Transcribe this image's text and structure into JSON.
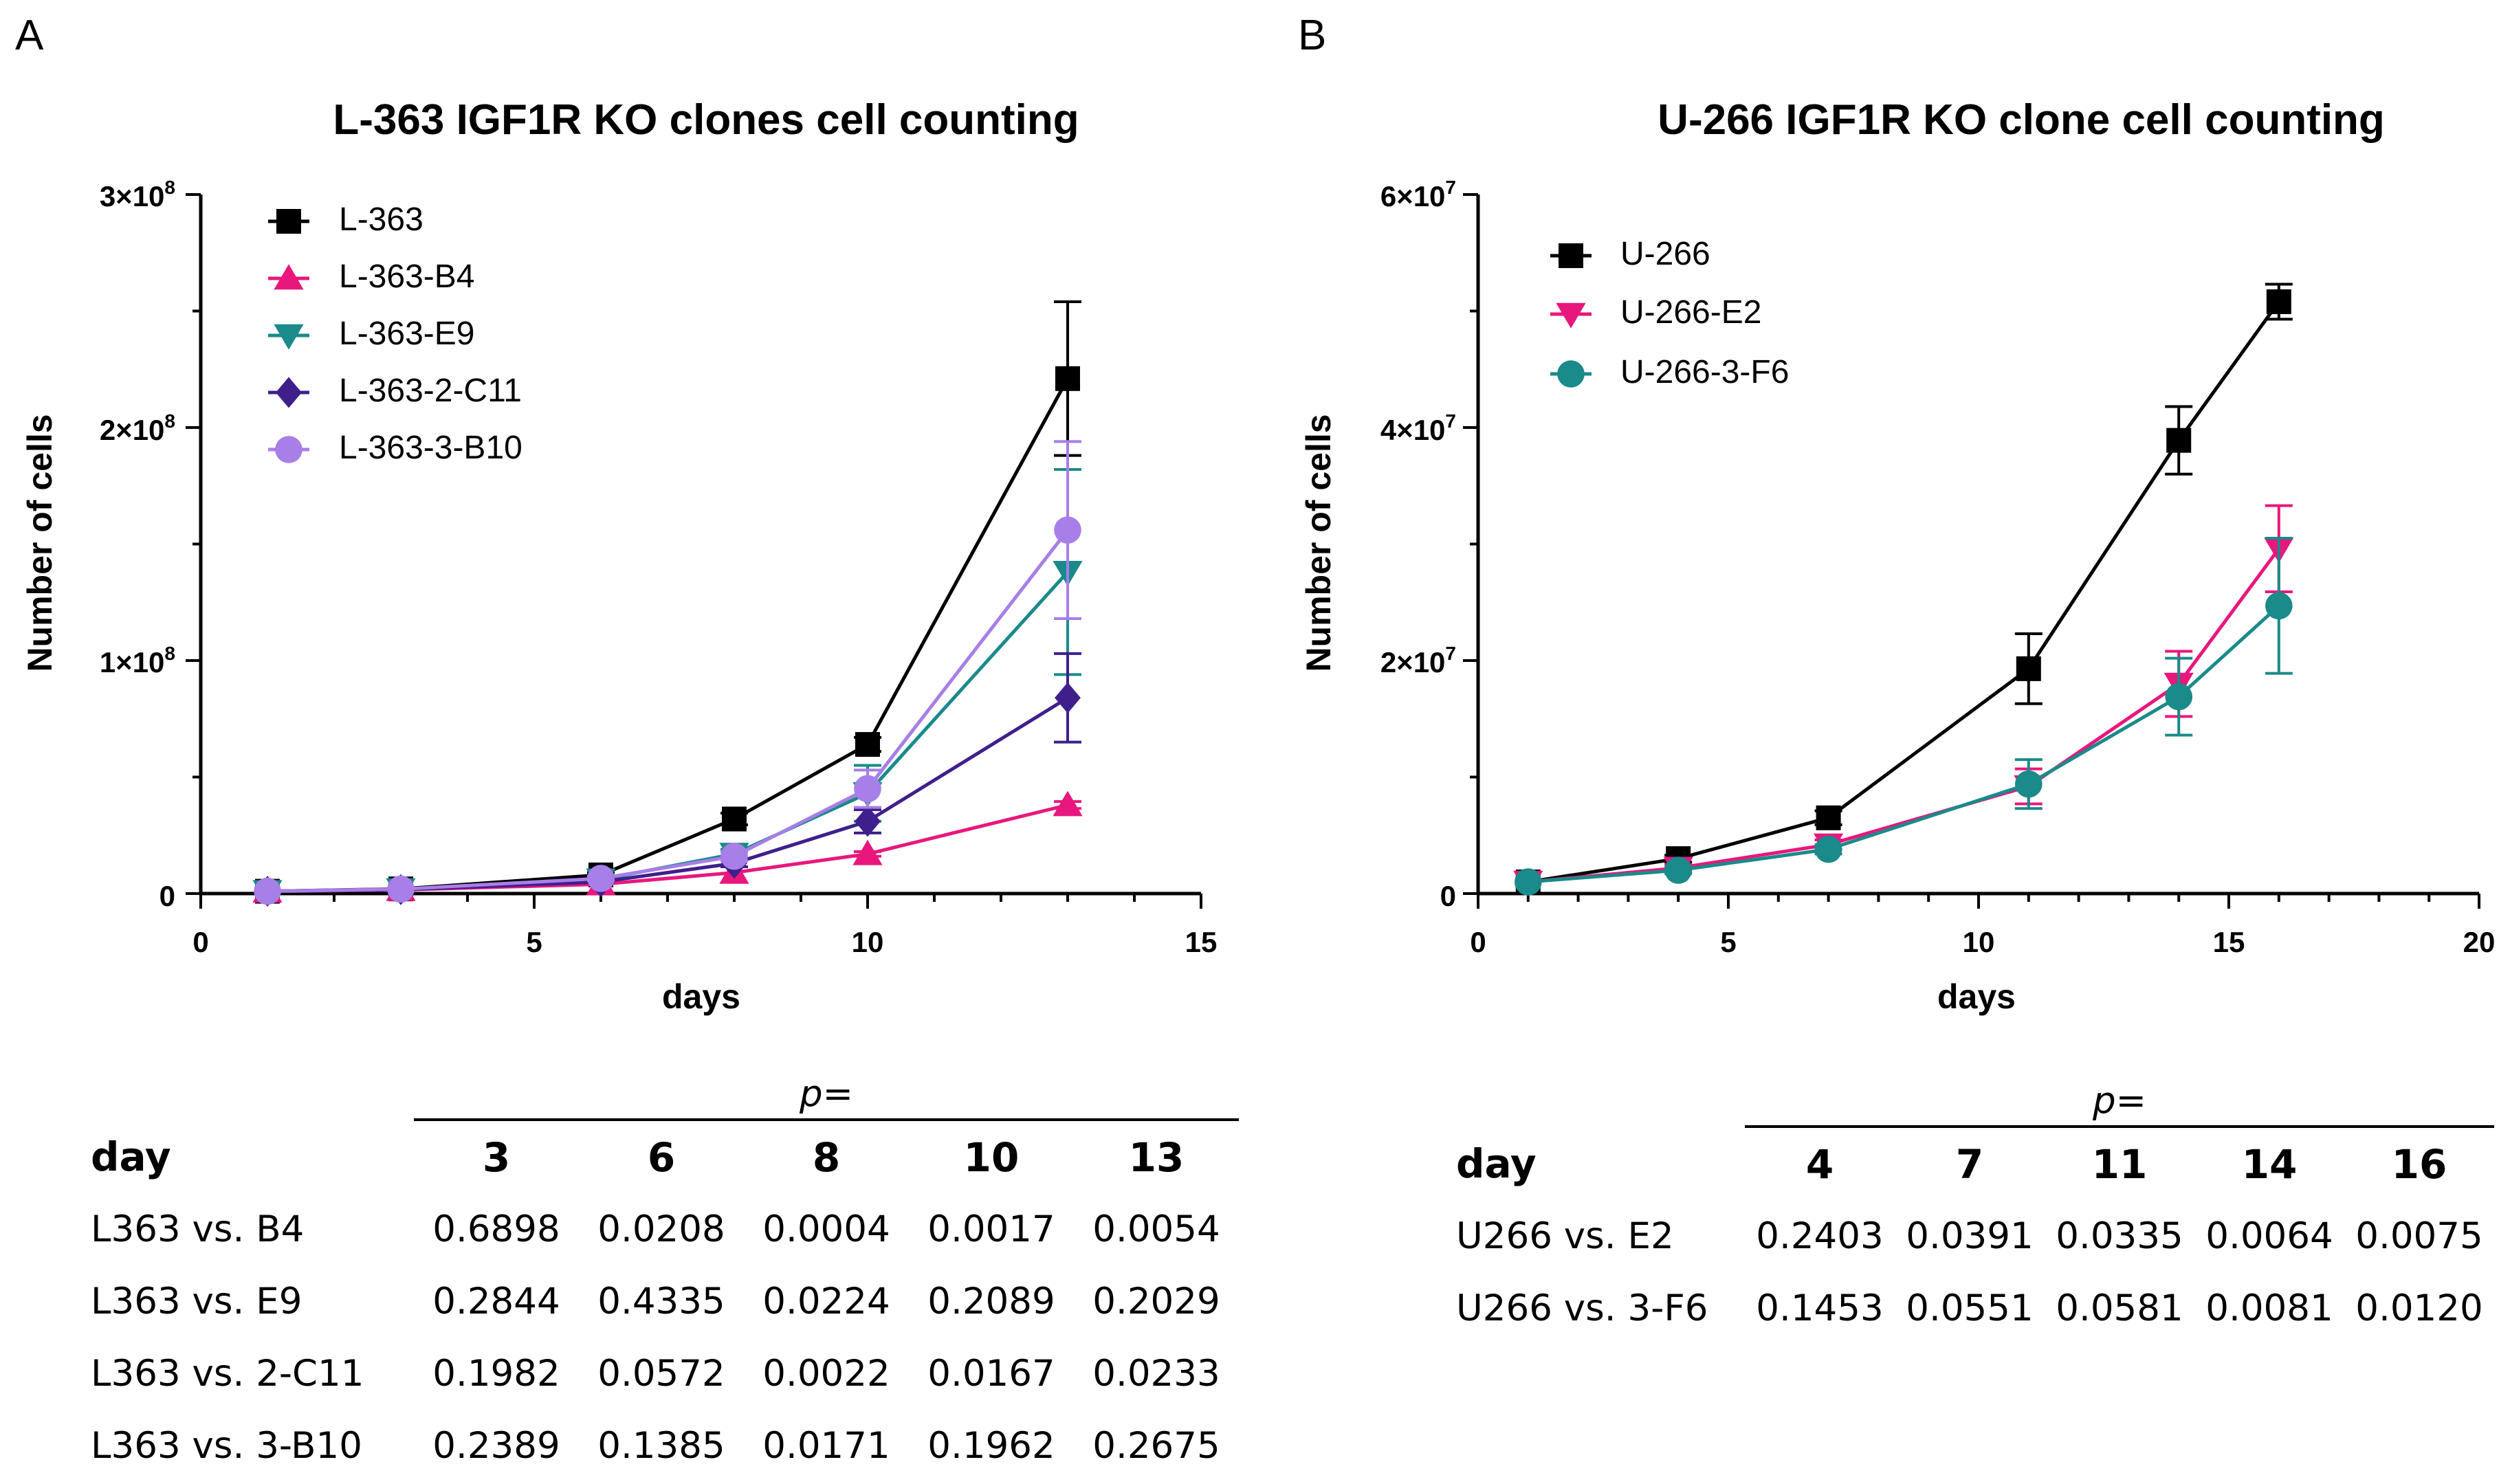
{
  "panels": [
    {
      "letter": "A",
      "title": "L-363 IGF1R KO clones cell counting",
      "xlabel": "days",
      "ylabel": "Number of cells",
      "xticks": [
        "0",
        "5",
        "10",
        "15"
      ],
      "yticks_base": [
        "3×10",
        "2×10",
        "1×10",
        "0"
      ],
      "yticks_exp": [
        "8",
        "8",
        "8",
        ""
      ],
      "legend": [
        "L-363",
        "L-363-B4",
        "L-363-E9",
        "L-363-2-C11",
        "L-363-3-B10"
      ],
      "table": {
        "p_label": "p=",
        "day_label": "day",
        "days": [
          "3",
          "6",
          "8",
          "10",
          "13"
        ],
        "rows": [
          {
            "label": "L363 vs. B4",
            "values": [
              "0.6898",
              "0.0208",
              "0.0004",
              "0.0017",
              "0.0054"
            ]
          },
          {
            "label": "L363 vs. E9",
            "values": [
              "0.2844",
              "0.4335",
              "0.0224",
              "0.2089",
              "0.2029"
            ]
          },
          {
            "label": "L363 vs. 2-C11",
            "values": [
              "0.1982",
              "0.0572",
              "0.0022",
              "0.0167",
              "0.0233"
            ]
          },
          {
            "label": "L363 vs. 3-B10",
            "values": [
              "0.2389",
              "0.1385",
              "0.0171",
              "0.1962",
              "0.2675"
            ]
          }
        ]
      }
    },
    {
      "letter": "B",
      "title": "U-266 IGF1R KO clone cell counting",
      "xlabel": "days",
      "ylabel": "Number of cells",
      "xticks": [
        "0",
        "5",
        "10",
        "15",
        "20"
      ],
      "yticks_base": [
        "6×10",
        "4×10",
        "2×10",
        "0"
      ],
      "yticks_exp": [
        "7",
        "7",
        "7",
        ""
      ],
      "legend": [
        "U-266",
        "U-266-E2",
        "U-266-3-F6"
      ],
      "table": {
        "p_label": "p=",
        "day_label": "day",
        "days": [
          "4",
          "7",
          "11",
          "14",
          "16"
        ],
        "rows": [
          {
            "label": "U266 vs. E2",
            "values": [
              "0.2403",
              "0.0391",
              "0.0335",
              "0.0064",
              "0.0075"
            ]
          },
          {
            "label": "U266 vs. 3-F6",
            "values": [
              "0.1453",
              "0.0551",
              "0.0581",
              "0.0081",
              "0.0120"
            ]
          }
        ]
      }
    }
  ],
  "chart_data": [
    {
      "type": "line",
      "title": "L-363 IGF1R KO clones cell counting",
      "xlabel": "days",
      "ylabel": "Number of cells",
      "xlim": [
        0,
        15
      ],
      "ylim": [
        0,
        300000000
      ],
      "series": [
        {
          "name": "L-363",
          "color": "#000000",
          "marker": "square",
          "x": [
            1,
            3,
            6,
            8,
            10,
            13
          ],
          "y": [
            1000000,
            2000000,
            8000000,
            32000000,
            64000000,
            221000000
          ],
          "err": [
            300000,
            400000,
            1000000,
            2500000,
            3000000,
            33000000
          ]
        },
        {
          "name": "L-363-B4",
          "color": "#e8177d",
          "marker": "triangle-up",
          "x": [
            1,
            3,
            6,
            8,
            10,
            13
          ],
          "y": [
            900000,
            1600000,
            4000000,
            9000000,
            17000000,
            38000000
          ],
          "err": [
            200000,
            300000,
            500000,
            800000,
            1000000,
            1500000
          ]
        },
        {
          "name": "L-363-E9",
          "color": "#1a8a8a",
          "marker": "triangle-down",
          "x": [
            1,
            3,
            6,
            8,
            10,
            13
          ],
          "y": [
            1000000,
            1800000,
            6000000,
            17000000,
            43000000,
            138000000
          ],
          "err": [
            200000,
            300000,
            800000,
            2000000,
            12000000,
            44000000
          ]
        },
        {
          "name": "L-363-2-C11",
          "color": "#3f1f8c",
          "marker": "diamond",
          "x": [
            1,
            3,
            6,
            8,
            10,
            13
          ],
          "y": [
            1000000,
            1700000,
            5000000,
            13000000,
            31000000,
            84000000
          ],
          "err": [
            200000,
            300000,
            700000,
            1500000,
            5000000,
            19000000
          ]
        },
        {
          "name": "L-363-3-B10",
          "color": "#a87ee8",
          "marker": "circle",
          "x": [
            1,
            3,
            6,
            8,
            10,
            13
          ],
          "y": [
            1000000,
            1900000,
            6500000,
            16000000,
            45000000,
            156000000
          ],
          "err": [
            200000,
            300000,
            900000,
            2000000,
            8000000,
            38000000
          ]
        }
      ]
    },
    {
      "type": "line",
      "title": "U-266 IGF1R KO clone cell counting",
      "xlabel": "days",
      "ylabel": "Number of cells",
      "xlim": [
        0,
        20
      ],
      "ylim": [
        0,
        60000000
      ],
      "series": [
        {
          "name": "U-266",
          "color": "#000000",
          "marker": "square",
          "x": [
            1,
            4,
            7,
            11,
            14,
            16
          ],
          "y": [
            1000000,
            3000000,
            6500000,
            19300000,
            38900000,
            50800000
          ],
          "err": [
            150000,
            300000,
            600000,
            3000000,
            2900000,
            1500000
          ]
        },
        {
          "name": "U-266-E2",
          "color": "#e8177d",
          "marker": "triangle-down",
          "x": [
            1,
            4,
            7,
            11,
            14,
            16
          ],
          "y": [
            1000000,
            2200000,
            4200000,
            9200000,
            18000000,
            29600000
          ],
          "err": [
            150000,
            300000,
            400000,
            1500000,
            2800000,
            3700000
          ]
        },
        {
          "name": "U-266-3-F6",
          "color": "#1a8a8a",
          "marker": "circle",
          "x": [
            1,
            4,
            7,
            11,
            14,
            16
          ],
          "y": [
            1000000,
            2000000,
            3800000,
            9400000,
            16900000,
            24700000
          ],
          "err": [
            150000,
            300000,
            400000,
            2100000,
            3300000,
            5800000
          ]
        }
      ]
    }
  ]
}
